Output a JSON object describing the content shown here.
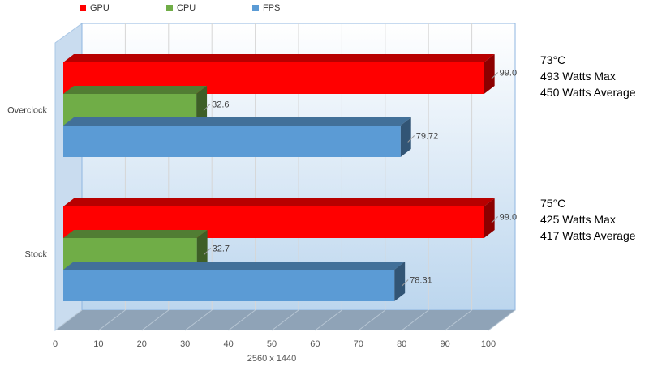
{
  "chart_data": {
    "type": "bar",
    "orientation": "horizontal",
    "three_d": true,
    "categories": [
      "Overclock",
      "Stock"
    ],
    "series": [
      {
        "name": "GPU",
        "color": "#ff0000",
        "values": [
          99.0,
          99.0
        ],
        "labels": [
          "99.0",
          "99.0"
        ]
      },
      {
        "name": "CPU",
        "color": "#70ad47",
        "values": [
          32.6,
          32.7
        ],
        "labels": [
          "32.6",
          "32.7"
        ]
      },
      {
        "name": "FPS",
        "color": "#5b9bd5",
        "values": [
          79.72,
          78.31
        ],
        "labels": [
          "79.72",
          "78.31"
        ]
      }
    ],
    "xlabel": "2560 x 1440",
    "xlim": [
      0,
      100
    ],
    "xticks": [
      "0",
      "10",
      "20",
      "30",
      "40",
      "50",
      "60",
      "70",
      "80",
      "90",
      "100"
    ],
    "grid": true,
    "legend": "top"
  },
  "annotations": [
    {
      "category": "Overclock",
      "lines": [
        "73°C",
        "493 Watts Max",
        "450 Watts Average"
      ]
    },
    {
      "category": "Stock",
      "lines": [
        "75°C",
        "425 Watts Max",
        "417 Watts Average"
      ]
    }
  ]
}
